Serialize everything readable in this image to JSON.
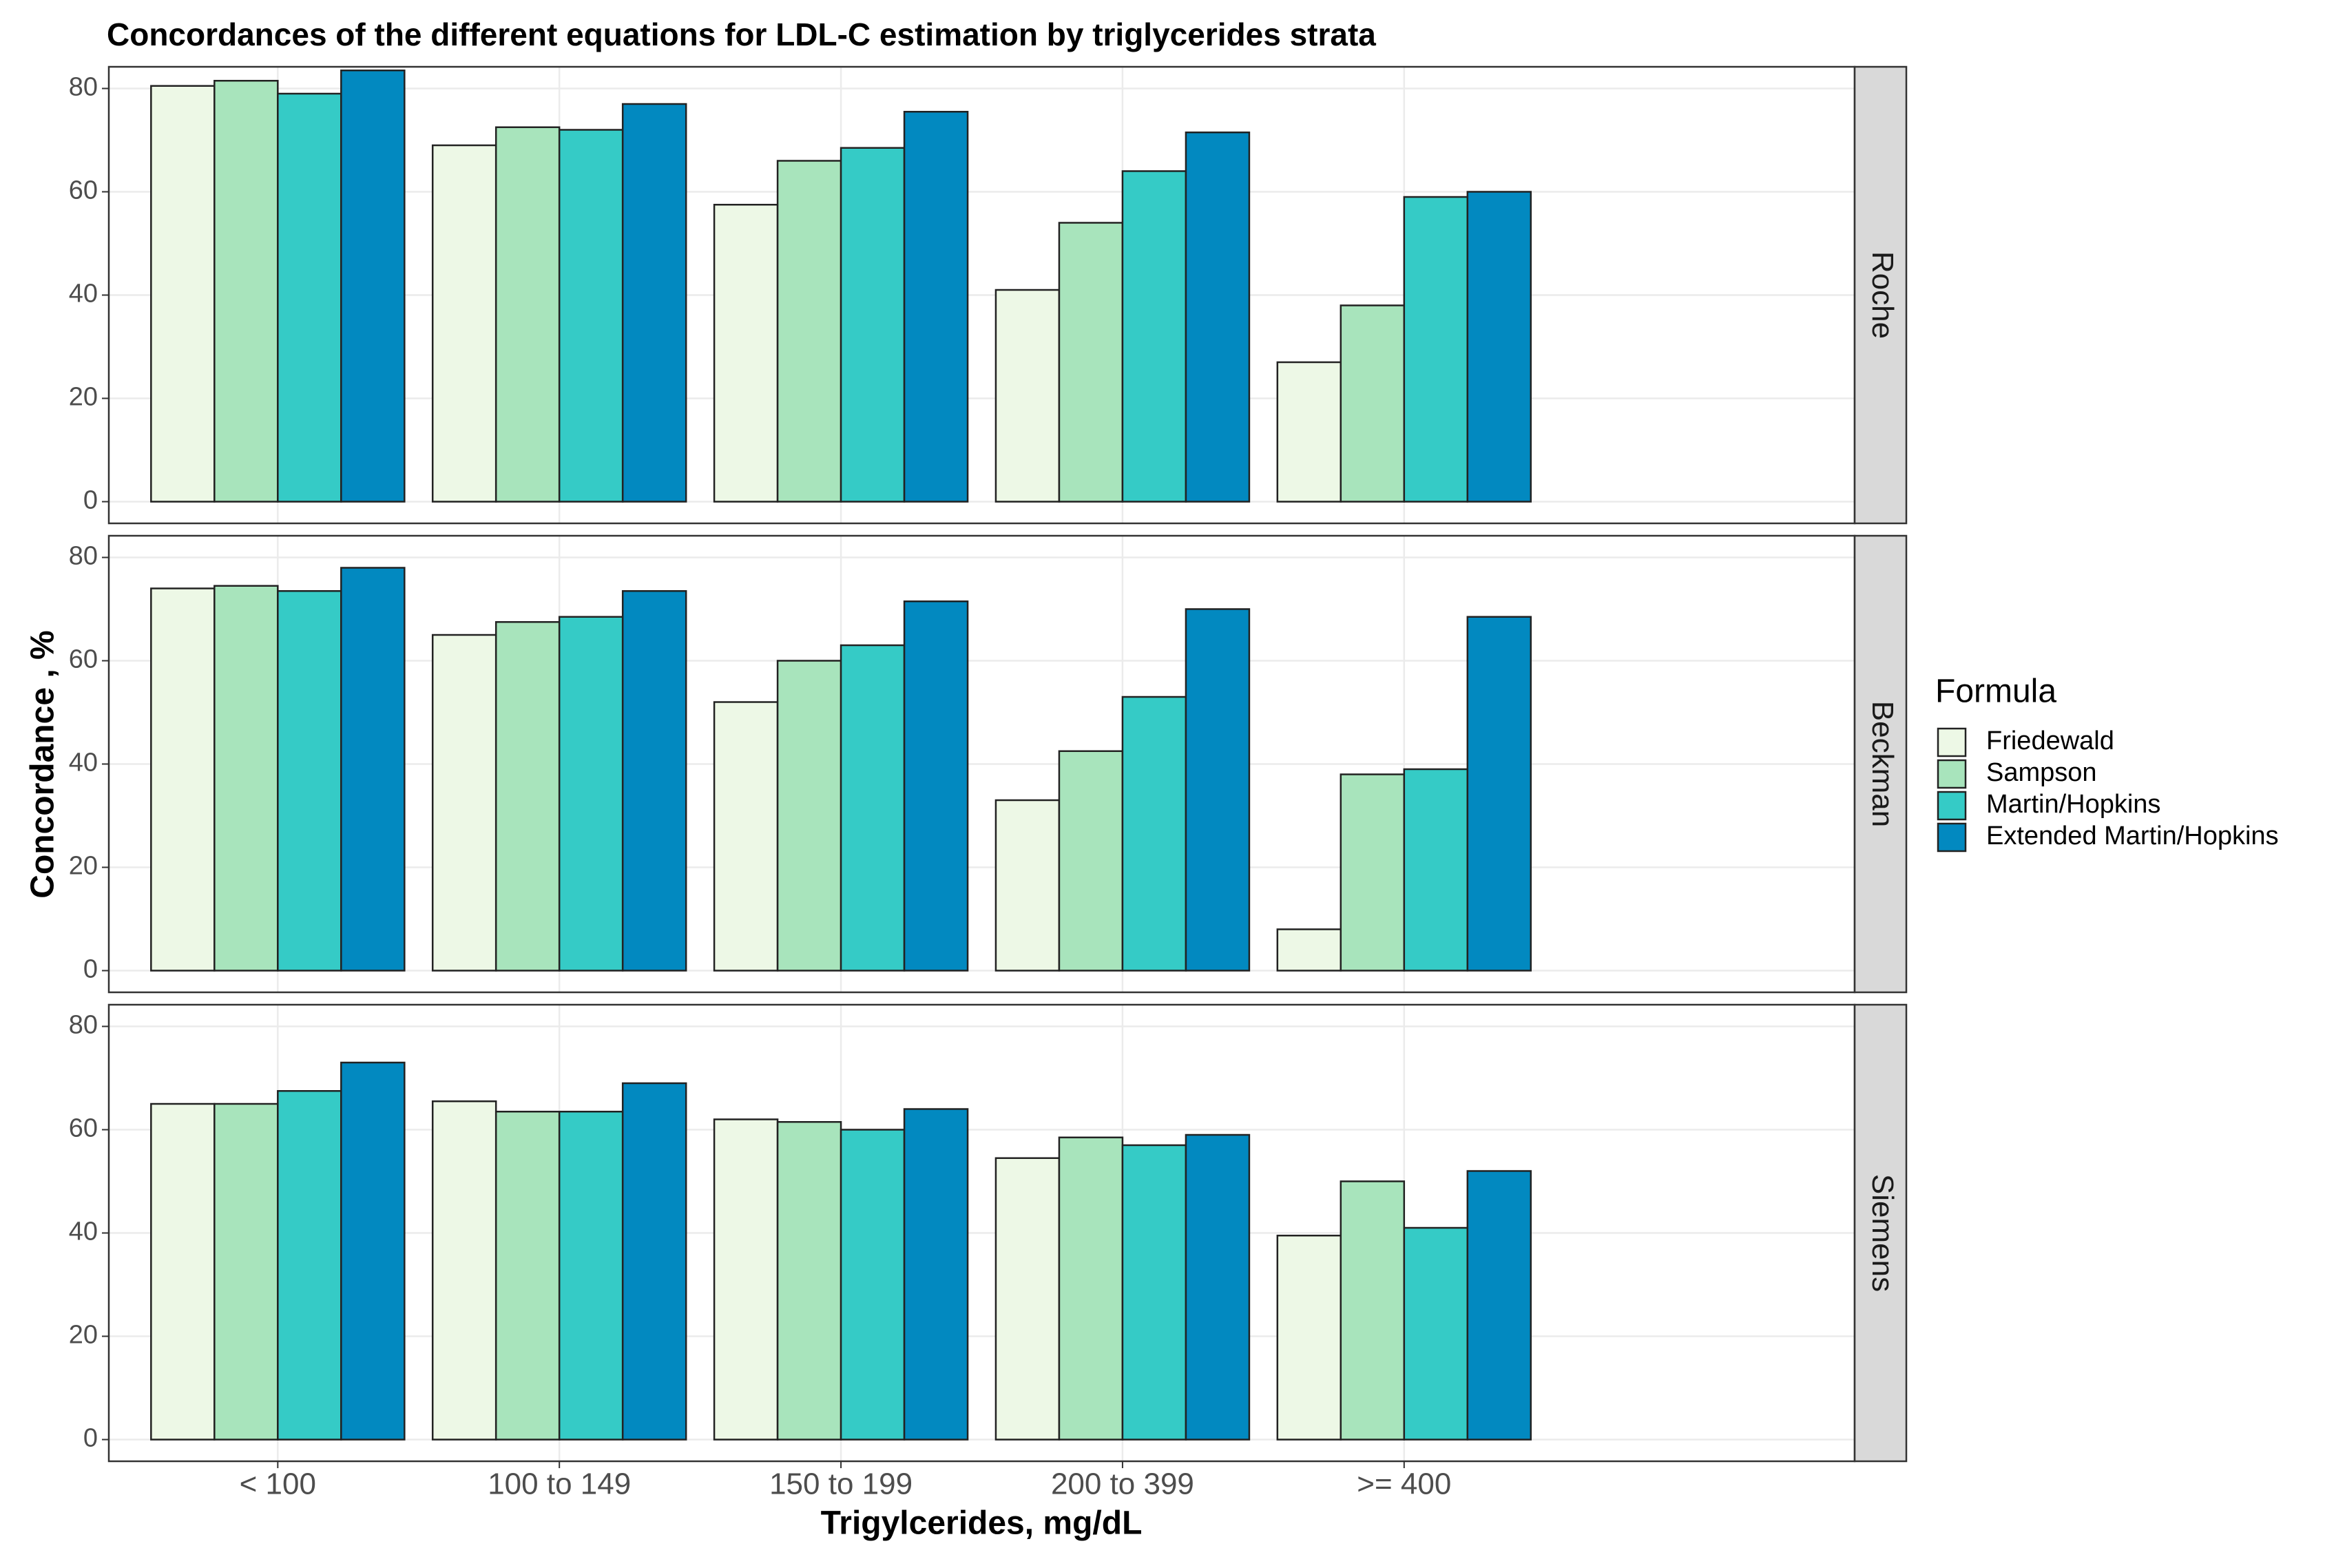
{
  "chart_data": {
    "type": "bar",
    "title": "Concordances of the different equations for LDL-C estimation by triglycerides strata",
    "xlabel": "Trigylcerides, mg/dL",
    "ylabel": "Concordance , %",
    "legend_title": "Formula",
    "legend_position": "right",
    "grid": true,
    "facets": [
      "Roche",
      "Beckman",
      "Siemens"
    ],
    "categories": [
      "< 100",
      "100 to 149",
      "150 to 199",
      "200 to 399",
      ">= 400"
    ],
    "ylim": [
      -4.2,
      84.2
    ],
    "yticks": [
      0,
      20,
      40,
      60,
      80
    ],
    "series": [
      {
        "name": "Friedewald",
        "color": "#edf8e6",
        "values": [
          [
            80.5,
            69,
            57.5,
            41,
            27
          ],
          [
            74,
            65,
            52,
            33,
            8
          ],
          [
            65,
            65.5,
            62,
            54.5,
            39.5
          ]
        ]
      },
      {
        "name": "Sampson",
        "color": "#a8e4bc",
        "values": [
          [
            81.5,
            72.5,
            66,
            54,
            38
          ],
          [
            74.5,
            67.5,
            60,
            42.5,
            38
          ],
          [
            65,
            63.5,
            61.5,
            58.5,
            50
          ]
        ]
      },
      {
        "name": "Martin/Hopkins",
        "color": "#35cbc6",
        "values": [
          [
            79,
            72,
            68.5,
            64,
            59
          ],
          [
            73.5,
            68.5,
            63,
            53,
            39
          ],
          [
            67.5,
            63.5,
            60,
            57,
            41
          ]
        ]
      },
      {
        "name": "Extended Martin/Hopkins",
        "color": "#0289c0",
        "values": [
          [
            83.5,
            77,
            75.5,
            71.5,
            60
          ],
          [
            78,
            73.5,
            71.5,
            70,
            68.5
          ],
          [
            73,
            69,
            64,
            59,
            52
          ]
        ]
      }
    ]
  }
}
